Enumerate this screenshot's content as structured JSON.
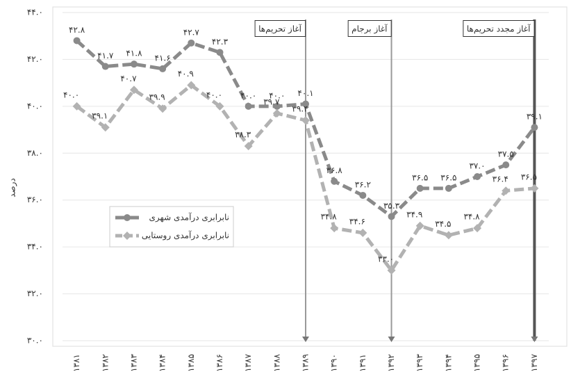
{
  "chart_data": {
    "type": "line",
    "y_label": "درصد",
    "categories": [
      "۱۳۸۱",
      "۱۳۸۲",
      "۱۳۸۳",
      "۱۳۸۴",
      "۱۳۸۵",
      "۱۳۸۶",
      "۱۳۸۷",
      "۱۳۸۸",
      "۱۳۸۹",
      "۱۳۹۰",
      "۱۳۹۱",
      "۱۳۹۲",
      "۱۳۹۳",
      "۱۳۹۴",
      "۱۳۹۵",
      "۱۳۹۶",
      "۱۳۹۷"
    ],
    "series": [
      {
        "name": "نابرابری درآمدی شهری",
        "color": "#8a8a8a",
        "values": [
          42.8,
          41.7,
          41.8,
          41.6,
          42.7,
          42.3,
          40.0,
          40.0,
          40.1,
          36.8,
          36.2,
          35.3,
          36.5,
          36.5,
          37.0,
          37.5,
          39.1
        ],
        "value_labels": [
          "۴۲.۸",
          "۴۱.۷",
          "۴۱.۸",
          "۴۱.۶",
          "۴۲.۷",
          "۴۲.۳",
          "۴۰.۰",
          "۴۰.۰",
          "۴۰.۱",
          "۳۶.۸",
          "۳۶.۲",
          "۳۵.۳",
          "۳۶.۵",
          "۳۶.۵",
          "۳۷.۰",
          "۳۷.۵",
          "۳۹.۱"
        ]
      },
      {
        "name": "نابرابری درآمدی روستایی",
        "color": "#b2b2b2",
        "values": [
          40.0,
          39.1,
          40.7,
          39.9,
          40.9,
          40.0,
          38.3,
          39.7,
          39.4,
          34.8,
          34.6,
          33.0,
          34.9,
          34.5,
          34.8,
          36.4,
          36.5
        ],
        "value_labels": [
          "۴۰.۰",
          "۳۹.۱",
          "۴۰.۷",
          "۳۹.۹",
          "۴۰.۹",
          "۴۰.۰",
          "۳۸.۳",
          "۳۹.۷",
          "۳۹.۴",
          "۳۴.۸",
          "۳۴.۶",
          "۳۳.۰",
          "۳۴.۹",
          "۳۴.۵",
          "۳۴.۸",
          "۳۶.۴",
          "۳۶.۵"
        ]
      }
    ],
    "annotations": [
      {
        "label": "آغاز تحریم‌ها",
        "category": "۱۳۸۹"
      },
      {
        "label": "آغاز برجام",
        "category": "۱۳۹۲"
      },
      {
        "label": "آغاز مجدد تحریم‌ها",
        "category": "۱۳۹۷"
      }
    ],
    "ylim": [
      30,
      44
    ],
    "yticks": [
      {
        "value": 30,
        "label": "۳۰.۰"
      },
      {
        "value": 32,
        "label": "۳۲.۰"
      },
      {
        "value": 34,
        "label": "۳۴.۰"
      },
      {
        "value": 36,
        "label": "۳۶.۰"
      },
      {
        "value": 38,
        "label": "۳۸.۰"
      },
      {
        "value": 40,
        "label": "۴۰.۰"
      },
      {
        "value": 42,
        "label": "۴۲.۰"
      },
      {
        "value": 44,
        "label": "۴۴.۰"
      }
    ],
    "grid": true
  }
}
